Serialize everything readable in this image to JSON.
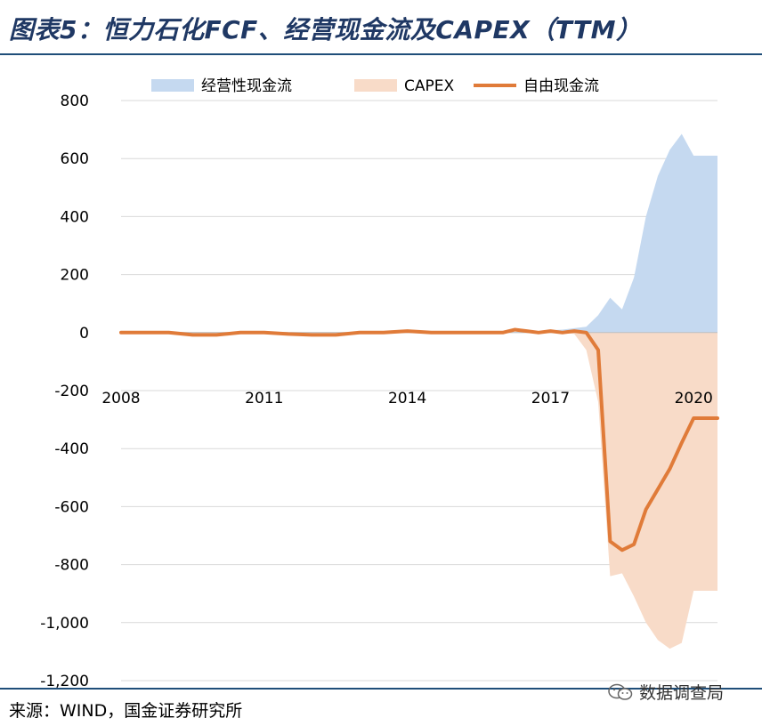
{
  "header": {
    "title": "图表5：恒力石化FCF、经营现金流及CAPEX（TTM）"
  },
  "footer": {
    "source": "来源：WIND，国金证券研究所",
    "watermark": "数据调查局"
  },
  "chart_data": {
    "type": "area",
    "x_ticks": [
      "2008",
      "2011",
      "2014",
      "2017",
      "2020"
    ],
    "y_ticks": [
      "800",
      "600",
      "400",
      "200",
      "0",
      "-200",
      "-400",
      "-600",
      "-800",
      "-1,000",
      "-1,200"
    ],
    "ylim": [
      -1200,
      800
    ],
    "grid": true,
    "legend": "top",
    "x": [
      2008.0,
      2008.5,
      2009.0,
      2009.5,
      2010.0,
      2010.5,
      2011.0,
      2011.5,
      2012.0,
      2012.5,
      2013.0,
      2013.5,
      2014.0,
      2014.5,
      2015.0,
      2015.5,
      2016.0,
      2016.25,
      2016.5,
      2016.75,
      2017.0,
      2017.25,
      2017.5,
      2017.75,
      2018.0,
      2018.25,
      2018.5,
      2018.75,
      2019.0,
      2019.25,
      2019.5,
      2019.75,
      2020.0,
      2020.25,
      2020.5
    ],
    "series": [
      {
        "name": "经营性现金流",
        "style": "area",
        "color": "#c5d9f0",
        "values": [
          0,
          0,
          0,
          0,
          0,
          0,
          0,
          0,
          0,
          0,
          0,
          0,
          0,
          0,
          0,
          0,
          0,
          2,
          5,
          3,
          8,
          10,
          15,
          20,
          60,
          120,
          80,
          190,
          400,
          540,
          630,
          685,
          610,
          610,
          610
        ]
      },
      {
        "name": "CAPEX",
        "style": "area",
        "color": "#f8dbc8",
        "values": [
          0,
          0,
          0,
          0,
          0,
          0,
          0,
          0,
          0,
          0,
          0,
          0,
          0,
          0,
          0,
          0,
          0,
          0,
          0,
          0,
          0,
          0,
          -5,
          -60,
          -240,
          -840,
          -830,
          -910,
          -1000,
          -1060,
          -1090,
          -1070,
          -890,
          -890,
          -890
        ]
      },
      {
        "name": "自由现金流",
        "style": "line",
        "color": "#e07b39",
        "values": [
          0,
          0,
          0,
          -8,
          -8,
          0,
          0,
          -5,
          -8,
          -8,
          0,
          0,
          5,
          0,
          0,
          0,
          0,
          10,
          5,
          0,
          5,
          0,
          5,
          0,
          -60,
          -720,
          -750,
          -730,
          -610,
          -540,
          -470,
          -380,
          -295,
          -295,
          -295
        ]
      }
    ]
  }
}
